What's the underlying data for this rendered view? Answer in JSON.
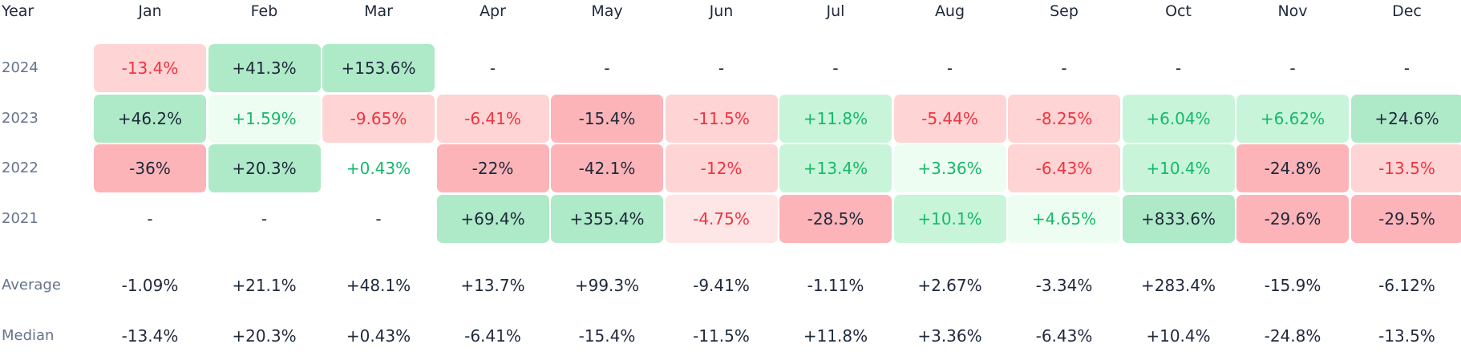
{
  "chart_data": {
    "type": "heatmap",
    "header_label": "Year",
    "months": [
      "Jan",
      "Feb",
      "Mar",
      "Apr",
      "May",
      "Jun",
      "Jul",
      "Aug",
      "Sep",
      "Oct",
      "Nov",
      "Dec"
    ],
    "rows": [
      {
        "year": "2024",
        "values": [
          "-13.4%",
          "+41.3%",
          "+153.6%",
          "-",
          "-",
          "-",
          "-",
          "-",
          "-",
          "-",
          "-",
          "-"
        ]
      },
      {
        "year": "2023",
        "values": [
          "+46.2%",
          "+1.59%",
          "-9.65%",
          "-6.41%",
          "-15.4%",
          "-11.5%",
          "+11.8%",
          "-5.44%",
          "-8.25%",
          "+6.04%",
          "+6.62%",
          "+24.6%"
        ]
      },
      {
        "year": "2022",
        "values": [
          "-36%",
          "+20.3%",
          "+0.43%",
          "-22%",
          "-42.1%",
          "-12%",
          "+13.4%",
          "+3.36%",
          "-6.43%",
          "+10.4%",
          "-24.8%",
          "-13.5%"
        ]
      },
      {
        "year": "2021",
        "values": [
          "-",
          "-",
          "-",
          "+69.4%",
          "+355.4%",
          "-4.75%",
          "-28.5%",
          "+10.1%",
          "+4.65%",
          "+833.6%",
          "-29.6%",
          "-29.5%"
        ]
      }
    ],
    "summary": [
      {
        "label": "Average",
        "values": [
          "-1.09%",
          "+21.1%",
          "+48.1%",
          "+13.7%",
          "+99.3%",
          "-9.41%",
          "-1.11%",
          "+2.67%",
          "-3.34%",
          "+283.4%",
          "-15.9%",
          "-6.12%"
        ]
      },
      {
        "label": "Median",
        "values": [
          "-13.4%",
          "+20.3%",
          "+0.43%",
          "-6.41%",
          "-15.4%",
          "-11.5%",
          "+11.8%",
          "+3.36%",
          "-6.43%",
          "+10.4%",
          "-24.8%",
          "-13.5%"
        ]
      }
    ],
    "colors": {
      "positive_text": "#16b96a",
      "negative_text": "#ef3340",
      "neutral_text": "#1e293b",
      "pos_light": "#eefdf2",
      "pos_mid": "#c8f5d9",
      "pos_strong": "#aee9c8",
      "neg_light": "#fee6e6",
      "neg_mid": "#fed4d4",
      "neg_strong": "#fcb4b8"
    }
  }
}
